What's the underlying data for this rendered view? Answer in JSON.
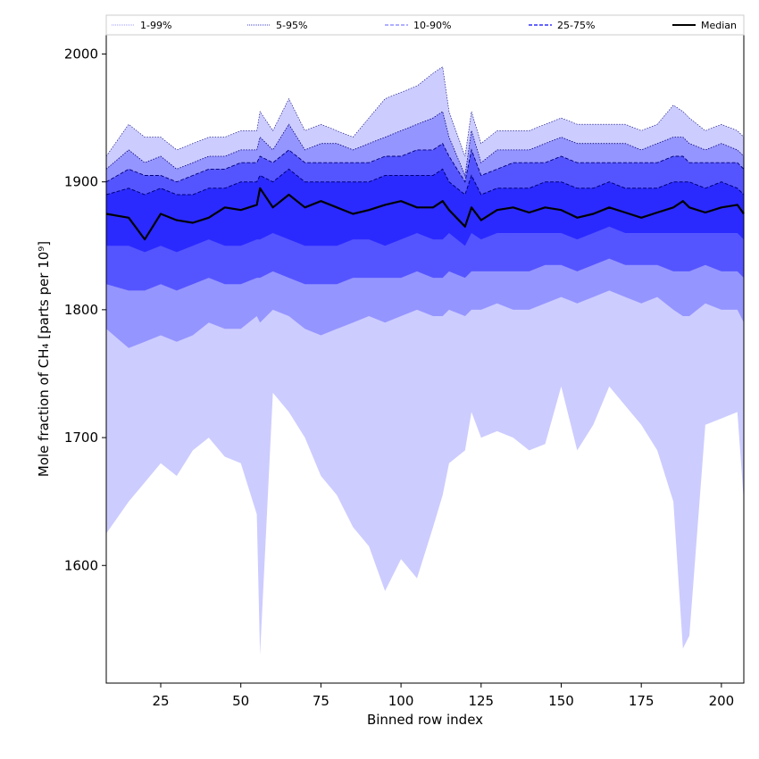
{
  "chart_data": {
    "type": "area",
    "xlabel": "Binned row index",
    "ylabel": "Mole fraction of CH₄ [parts per 10⁹]",
    "xlim": [
      8,
      207
    ],
    "ylim": [
      1508,
      2015
    ],
    "xticks": [
      25,
      50,
      75,
      100,
      125,
      150,
      175,
      200
    ],
    "yticks": [
      1600,
      1700,
      1800,
      1900,
      2000
    ],
    "grid": false,
    "legend_position": "top",
    "colors": {
      "band_1_99": "#ccccff",
      "band_5_95": "#9595ff",
      "band_10_90": "#5555ff",
      "band_25_75": "#2a2aff",
      "median": "#000000",
      "edge_dark": "#00007a"
    },
    "legend": [
      {
        "label": "1-99%",
        "style": "dotted-light"
      },
      {
        "label": "5-95%",
        "style": "dotted"
      },
      {
        "label": "10-90%",
        "style": "dashed-light"
      },
      {
        "label": "25-75%",
        "style": "dashed"
      },
      {
        "label": "Median",
        "style": "solid"
      }
    ],
    "x": [
      8,
      15,
      20,
      25,
      30,
      35,
      40,
      45,
      50,
      55,
      56,
      60,
      65,
      70,
      75,
      80,
      85,
      90,
      95,
      100,
      105,
      110,
      113,
      115,
      120,
      122,
      125,
      130,
      135,
      140,
      145,
      150,
      155,
      160,
      165,
      170,
      175,
      180,
      185,
      188,
      190,
      195,
      200,
      205,
      207
    ],
    "series": [
      {
        "name": "1-99%",
        "lower": [
          1625,
          1650,
          1665,
          1680,
          1670,
          1690,
          1700,
          1685,
          1680,
          1640,
          1530,
          1735,
          1720,
          1700,
          1670,
          1655,
          1630,
          1615,
          1580,
          1605,
          1590,
          1630,
          1655,
          1680,
          1690,
          1720,
          1700,
          1705,
          1700,
          1690,
          1695,
          1740,
          1690,
          1710,
          1740,
          1725,
          1710,
          1690,
          1650,
          1535,
          1545,
          1710,
          1715,
          1720,
          1650
        ],
        "upper": [
          1920,
          1945,
          1935,
          1935,
          1925,
          1930,
          1935,
          1935,
          1940,
          1940,
          1955,
          1940,
          1965,
          1940,
          1945,
          1940,
          1935,
          1950,
          1965,
          1970,
          1975,
          1985,
          1990,
          1955,
          1920,
          1955,
          1930,
          1940,
          1940,
          1940,
          1945,
          1950,
          1945,
          1945,
          1945,
          1945,
          1940,
          1945,
          1960,
          1955,
          1950,
          1940,
          1945,
          1940,
          1935
        ]
      },
      {
        "name": "5-95%",
        "lower": [
          1785,
          1770,
          1775,
          1780,
          1775,
          1780,
          1790,
          1785,
          1785,
          1795,
          1790,
          1800,
          1795,
          1785,
          1780,
          1785,
          1790,
          1795,
          1790,
          1795,
          1800,
          1795,
          1795,
          1800,
          1795,
          1800,
          1800,
          1805,
          1800,
          1800,
          1805,
          1810,
          1805,
          1810,
          1815,
          1810,
          1805,
          1810,
          1800,
          1795,
          1795,
          1805,
          1800,
          1800,
          1790
        ],
        "upper": [
          1910,
          1925,
          1915,
          1920,
          1910,
          1915,
          1920,
          1920,
          1925,
          1925,
          1935,
          1925,
          1945,
          1925,
          1930,
          1930,
          1925,
          1930,
          1935,
          1940,
          1945,
          1950,
          1955,
          1935,
          1905,
          1940,
          1915,
          1925,
          1925,
          1925,
          1930,
          1935,
          1930,
          1930,
          1930,
          1930,
          1925,
          1930,
          1935,
          1935,
          1930,
          1925,
          1930,
          1925,
          1920
        ]
      },
      {
        "name": "10-90%",
        "lower": [
          1820,
          1815,
          1815,
          1820,
          1815,
          1820,
          1825,
          1820,
          1820,
          1825,
          1825,
          1830,
          1825,
          1820,
          1820,
          1820,
          1825,
          1825,
          1825,
          1825,
          1830,
          1825,
          1825,
          1830,
          1825,
          1830,
          1830,
          1830,
          1830,
          1830,
          1835,
          1835,
          1830,
          1835,
          1840,
          1835,
          1835,
          1835,
          1830,
          1830,
          1830,
          1835,
          1830,
          1830,
          1825
        ],
        "upper": [
          1900,
          1910,
          1905,
          1905,
          1900,
          1905,
          1910,
          1910,
          1915,
          1915,
          1920,
          1915,
          1925,
          1915,
          1915,
          1915,
          1915,
          1915,
          1920,
          1920,
          1925,
          1925,
          1930,
          1920,
          1900,
          1925,
          1905,
          1910,
          1915,
          1915,
          1915,
          1920,
          1915,
          1915,
          1915,
          1915,
          1915,
          1915,
          1920,
          1920,
          1915,
          1915,
          1915,
          1915,
          1910
        ]
      },
      {
        "name": "25-75%",
        "lower": [
          1850,
          1850,
          1845,
          1850,
          1845,
          1850,
          1855,
          1850,
          1850,
          1855,
          1855,
          1860,
          1855,
          1850,
          1850,
          1850,
          1855,
          1855,
          1850,
          1855,
          1860,
          1855,
          1855,
          1860,
          1850,
          1860,
          1855,
          1860,
          1860,
          1860,
          1860,
          1860,
          1855,
          1860,
          1865,
          1860,
          1860,
          1860,
          1860,
          1860,
          1860,
          1860,
          1860,
          1860,
          1855
        ],
        "upper": [
          1890,
          1895,
          1890,
          1895,
          1890,
          1890,
          1895,
          1895,
          1900,
          1900,
          1905,
          1900,
          1910,
          1900,
          1900,
          1900,
          1900,
          1900,
          1905,
          1905,
          1905,
          1905,
          1910,
          1900,
          1890,
          1905,
          1890,
          1895,
          1895,
          1895,
          1900,
          1900,
          1895,
          1895,
          1900,
          1895,
          1895,
          1895,
          1900,
          1900,
          1900,
          1895,
          1900,
          1895,
          1890
        ]
      },
      {
        "name": "Median",
        "values": [
          1875,
          1872,
          1855,
          1875,
          1870,
          1868,
          1872,
          1880,
          1878,
          1882,
          1895,
          1880,
          1890,
          1880,
          1885,
          1880,
          1875,
          1878,
          1882,
          1885,
          1880,
          1880,
          1885,
          1878,
          1865,
          1880,
          1870,
          1878,
          1880,
          1876,
          1880,
          1878,
          1872,
          1875,
          1880,
          1876,
          1872,
          1876,
          1880,
          1885,
          1880,
          1876,
          1880,
          1882,
          1875
        ]
      }
    ]
  }
}
